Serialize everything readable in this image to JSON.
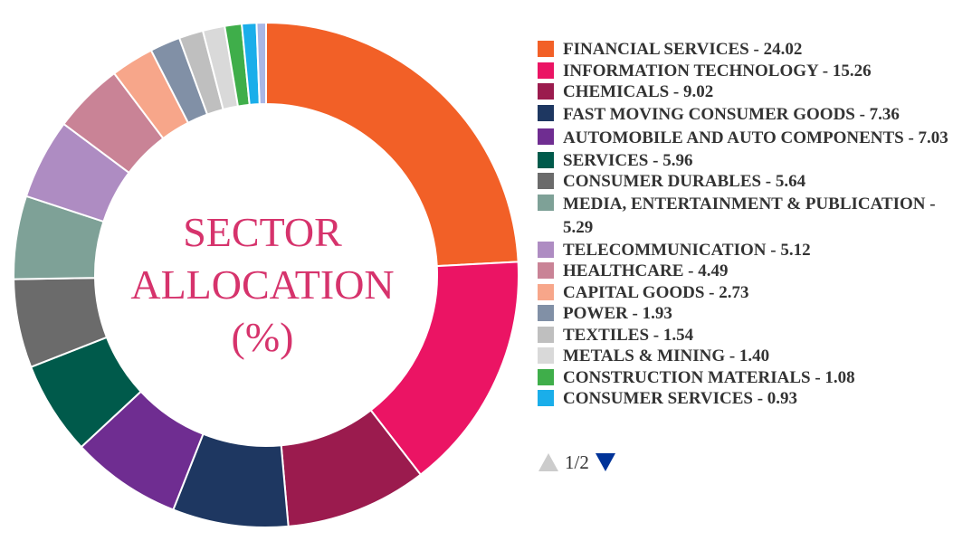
{
  "chart_data": {
    "type": "pie",
    "title": "SECTOR ALLOCATION (%)",
    "title_lines": [
      "SECTOR",
      "ALLOCATION",
      "(%)"
    ],
    "title_color": "#d6336c",
    "slices": [
      {
        "name": "FINANCIAL SERVICES",
        "value": 24.02,
        "value_text": "24.02",
        "color": "#f26027"
      },
      {
        "name": "INFORMATION TECHNOLOGY",
        "value": 15.26,
        "value_text": "15.26",
        "color": "#eb1464"
      },
      {
        "name": "CHEMICALS",
        "value": 9.02,
        "value_text": "9.02",
        "color": "#9b1b4e"
      },
      {
        "name": "FAST MOVING CONSUMER GOODS",
        "value": 7.36,
        "value_text": "7.36",
        "color": "#1e3761"
      },
      {
        "name": "AUTOMOBILE AND AUTO COMPONENTS",
        "value": 7.03,
        "value_text": "7.03",
        "color": "#6f2d91"
      },
      {
        "name": "SERVICES",
        "value": 5.96,
        "value_text": "5.96",
        "color": "#005a4b"
      },
      {
        "name": "CONSUMER DURABLES",
        "value": 5.64,
        "value_text": "5.64",
        "color": "#6b6b6b"
      },
      {
        "name": "MEDIA, ENTERTAINMENT & PUBLICATION",
        "value": 5.29,
        "value_text": "5.29",
        "color": "#7ea197"
      },
      {
        "name": "TELECOMMUNICATION",
        "value": 5.12,
        "value_text": "5.12",
        "color": "#ae8cc2"
      },
      {
        "name": "HEALTHCARE",
        "value": 4.49,
        "value_text": "4.49",
        "color": "#c98396"
      },
      {
        "name": "CAPITAL GOODS",
        "value": 2.73,
        "value_text": "2.73",
        "color": "#f7a68a"
      },
      {
        "name": "POWER",
        "value": 1.93,
        "value_text": "1.93",
        "color": "#8190a6"
      },
      {
        "name": "TEXTILES",
        "value": 1.54,
        "value_text": "1.54",
        "color": "#bfbfbf"
      },
      {
        "name": "METALS & MINING",
        "value": 1.4,
        "value_text": "1.40",
        "color": "#d9d9d9"
      },
      {
        "name": "CONSTRUCTION MATERIALS",
        "value": 1.08,
        "value_text": "1.08",
        "color": "#3fae4a"
      },
      {
        "name": "CONSUMER SERVICES",
        "value": 0.93,
        "value_text": "0.93",
        "color": "#1aaeea"
      },
      {
        "value": 0.6,
        "color": "#a9b7e6"
      }
    ],
    "legend": {
      "placement": "right",
      "page_text": "1/2",
      "prev_color": "#cccccc",
      "next_color": "#003399"
    }
  }
}
